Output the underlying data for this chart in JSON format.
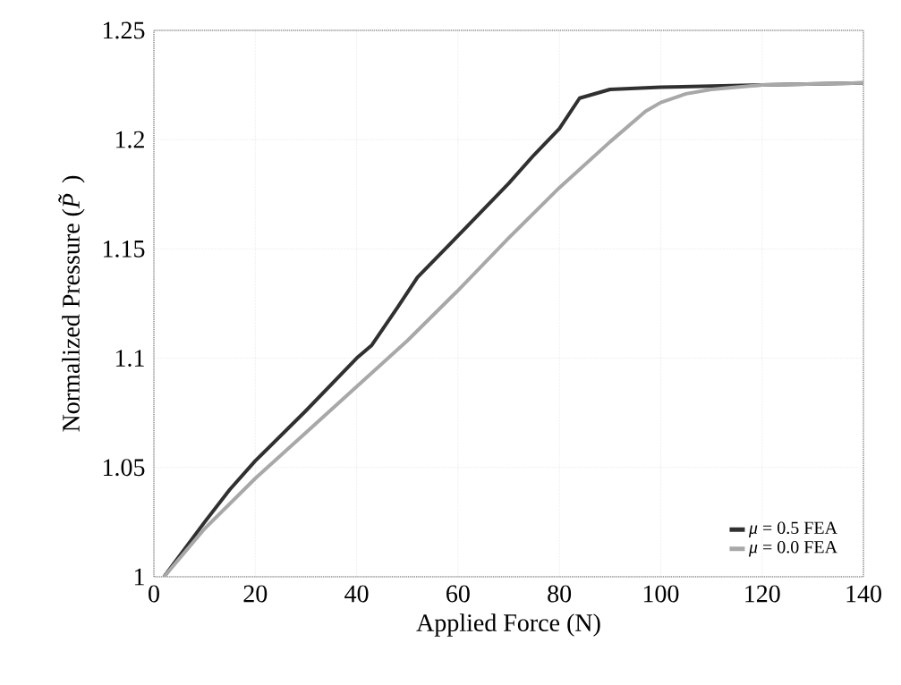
{
  "chart_data": {
    "type": "line",
    "xlabel": "Applied Force (N)",
    "ylabel": "Normalized Pressure (*P̃*)",
    "xlim": [
      0,
      140
    ],
    "ylim": [
      1,
      1.25
    ],
    "xticks": [
      0,
      20,
      40,
      60,
      80,
      100,
      120,
      140
    ],
    "yticks": [
      1,
      1.05,
      1.1,
      1.15,
      1.2,
      1.25
    ],
    "grid": true,
    "legend": "bottom right",
    "line_style": "solid",
    "series": [
      {
        "name": "*μ* = 0.5 FEA",
        "color": "#303030",
        "x": [
          2,
          10,
          15,
          20,
          30,
          40,
          43,
          48,
          52,
          60,
          65,
          70,
          75,
          80,
          84,
          90,
          100,
          120,
          140
        ],
        "values": [
          1.0,
          1.025,
          1.04,
          1.053,
          1.076,
          1.1,
          1.106,
          1.123,
          1.137,
          1.156,
          1.168,
          1.18,
          1.193,
          1.205,
          1.219,
          1.223,
          1.224,
          1.225,
          1.226
        ]
      },
      {
        "name": "*μ* = 0.0 FEA",
        "color": "#a8a8a8",
        "x": [
          2,
          10,
          20,
          30,
          40,
          50,
          60,
          70,
          80,
          90,
          97,
          100,
          105,
          110,
          120,
          140
        ],
        "values": [
          1.0,
          1.022,
          1.045,
          1.066,
          1.087,
          1.108,
          1.131,
          1.155,
          1.178,
          1.199,
          1.213,
          1.217,
          1.221,
          1.223,
          1.225,
          1.226
        ]
      }
    ]
  }
}
